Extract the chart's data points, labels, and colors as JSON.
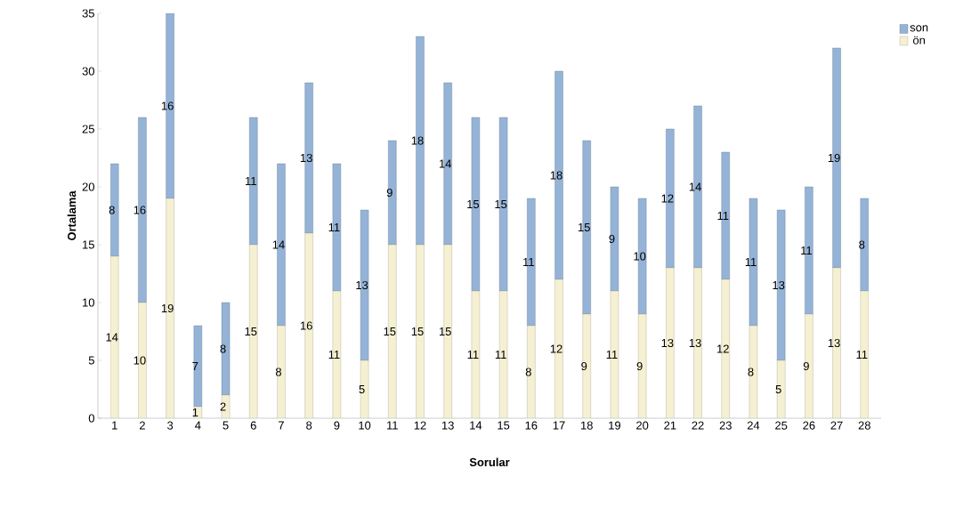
{
  "chart_data": {
    "type": "bar",
    "stacked": true,
    "xlabel": "Sorular",
    "ylabel": "Ortalama",
    "categories": [
      "1",
      "2",
      "3",
      "4",
      "5",
      "6",
      "7",
      "8",
      "9",
      "10",
      "11",
      "12",
      "13",
      "14",
      "15",
      "16",
      "17",
      "18",
      "19",
      "20",
      "21",
      "22",
      "23",
      "24",
      "25",
      "26",
      "27",
      "28"
    ],
    "series": [
      {
        "name": "ön",
        "color": "#f5f0d2",
        "values": [
          14,
          10,
          19,
          1,
          2,
          15,
          8,
          16,
          11,
          5,
          15,
          15,
          15,
          11,
          11,
          8,
          12,
          9,
          11,
          9,
          13,
          13,
          12,
          8,
          5,
          9,
          13,
          11
        ]
      },
      {
        "name": "son",
        "color": "#95b3d7",
        "values": [
          8,
          16,
          16,
          7,
          8,
          11,
          14,
          13,
          11,
          13,
          9,
          18,
          14,
          15,
          15,
          11,
          18,
          15,
          9,
          10,
          12,
          14,
          11,
          11,
          13,
          11,
          19,
          8
        ]
      }
    ],
    "ylim": [
      0,
      35
    ],
    "yticks": [
      0,
      5,
      10,
      15,
      20,
      25,
      30,
      35
    ],
    "grid": false,
    "legend": "right",
    "data_labels": true
  }
}
